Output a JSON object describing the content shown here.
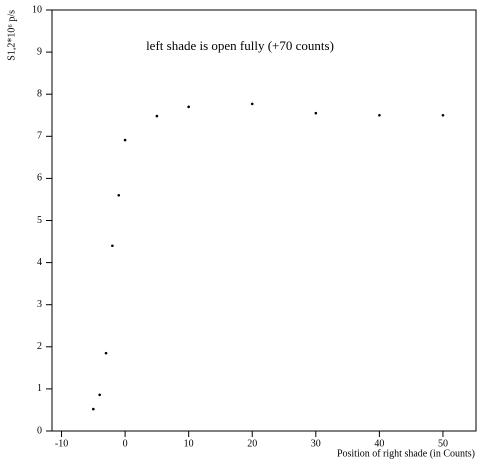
{
  "chart_data": {
    "type": "scatter",
    "annotation": "left shade is open fully (+70 counts)",
    "x_label": "Position of right shade (in Counts)",
    "y_label": "S1,2*10⁶ p/s",
    "x": [
      -5,
      -4,
      -3,
      -2,
      -1,
      0,
      5,
      10,
      20,
      30,
      40,
      50
    ],
    "values": [
      0.52,
      0.86,
      1.85,
      4.4,
      5.6,
      6.91,
      7.48,
      7.7,
      7.77,
      7.55,
      7.5,
      7.5
    ],
    "color": "#000000",
    "xlim": [
      -11.5,
      55.2
    ],
    "xticks": [
      -10,
      0,
      10,
      20,
      30,
      40,
      50
    ],
    "ylim": [
      0,
      10
    ],
    "yticks": [
      0,
      1,
      2,
      3,
      4,
      5,
      6,
      7,
      8,
      9,
      10
    ]
  }
}
